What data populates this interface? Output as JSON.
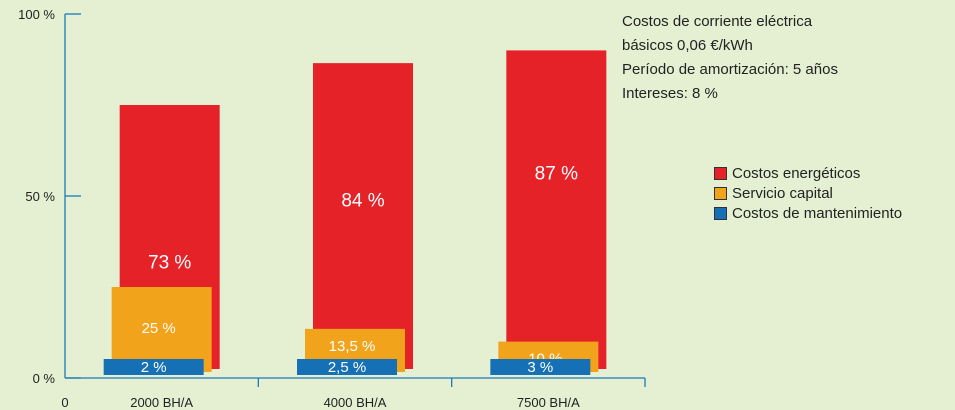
{
  "info": {
    "lines": [
      "Costos de corriente eléctrica",
      "básicos 0,06 €/kWh",
      "Período de amortización: 5 años",
      "Intereses: 8 %"
    ]
  },
  "colors": {
    "background": "#e5f0d3",
    "axis": "#1a7ab8",
    "energy": "#e52228",
    "capital": "#f2a31c",
    "maintenance": "#1570b5"
  },
  "chart_data": {
    "type": "bar",
    "categories": [
      "2000 BH/A",
      "4000 BH/A",
      "7500 BH/A"
    ],
    "x_origin_label": "0",
    "y_ticks": [
      "0 %",
      "50 %",
      "100 %"
    ],
    "ylim": [
      0,
      100
    ],
    "grid": false,
    "legend_position": "right",
    "series": [
      {
        "name": "Costos energéticos",
        "values": [
          73,
          84,
          87
        ],
        "labels": [
          "73 %",
          "84 %",
          "87 %"
        ],
        "color": "#e52228"
      },
      {
        "name": "Servicio capital",
        "values": [
          25,
          13.5,
          10
        ],
        "labels": [
          "25 %",
          "13,5 %",
          "10 %"
        ],
        "color": "#f2a31c"
      },
      {
        "name": "Costos de mantenimiento",
        "values": [
          2,
          2.5,
          3
        ],
        "labels": [
          "2 %",
          "2,5 %",
          "3 %"
        ],
        "color": "#1570b5"
      }
    ]
  }
}
